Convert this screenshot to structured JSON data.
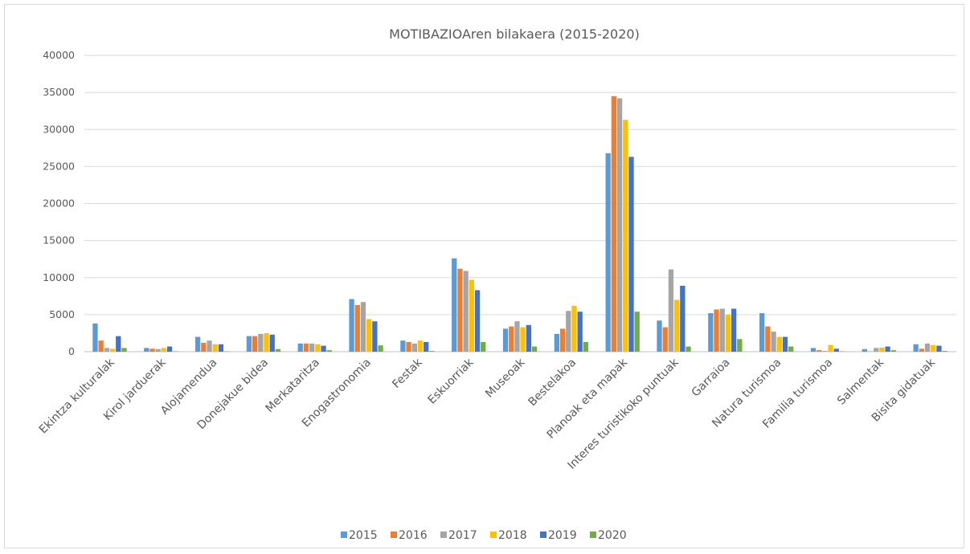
{
  "chart_data": {
    "type": "bar",
    "title": "MOTIBAZIOAren  bilakaera (2015-2020)",
    "xlabel": "",
    "ylabel": "",
    "ylim": [
      0,
      40000
    ],
    "yticks": [
      0,
      5000,
      10000,
      15000,
      20000,
      25000,
      30000,
      35000,
      40000
    ],
    "grid": true,
    "legend_position": "bottom",
    "categories": [
      "Ekintza kulturalak",
      "Kirol jarduerak",
      "Alojamendua",
      "Donejakue bidea",
      "Merkataritza",
      "Enogastronomia",
      "Festak",
      "Eskuorriak",
      "Museoak",
      "Bestelakoa",
      "Planoak eta mapak",
      "Interes turistikoko puntuak",
      "Garraioa",
      "Natura turismoa",
      "Familia turismoa",
      "Salmentak",
      "Bisita gidatuak"
    ],
    "series": [
      {
        "name": "2015",
        "color": "#5b9bd5",
        "values": [
          3800,
          500,
          2000,
          2100,
          1100,
          7100,
          1500,
          12600,
          3100,
          2400,
          26800,
          4200,
          5200,
          5200,
          500,
          350,
          1000
        ]
      },
      {
        "name": "2016",
        "color": "#ed7d31",
        "values": [
          1500,
          400,
          1200,
          2100,
          1100,
          6300,
          1300,
          11200,
          3400,
          3100,
          34500,
          3300,
          5700,
          3400,
          200,
          50,
          400
        ]
      },
      {
        "name": "2017",
        "color": "#a5a5a5",
        "values": [
          500,
          350,
          1500,
          2400,
          1100,
          6700,
          1100,
          10900,
          4100,
          5500,
          34200,
          11100,
          5800,
          2700,
          100,
          500,
          1100
        ]
      },
      {
        "name": "2018",
        "color": "#ffc000",
        "values": [
          400,
          500,
          1000,
          2500,
          1000,
          4400,
          1500,
          9700,
          3300,
          6200,
          31300,
          7000,
          5000,
          2000,
          900,
          550,
          900
        ]
      },
      {
        "name": "2019",
        "color": "#4472c4",
        "values": [
          2100,
          700,
          1000,
          2300,
          800,
          4100,
          1300,
          8300,
          3600,
          5400,
          26300,
          8900,
          5800,
          2000,
          400,
          700,
          800
        ]
      },
      {
        "name": "2020",
        "color": "#70ad47",
        "values": [
          500,
          50,
          50,
          350,
          200,
          850,
          100,
          1300,
          700,
          1300,
          5400,
          700,
          1700,
          700,
          50,
          200,
          100
        ]
      }
    ]
  }
}
